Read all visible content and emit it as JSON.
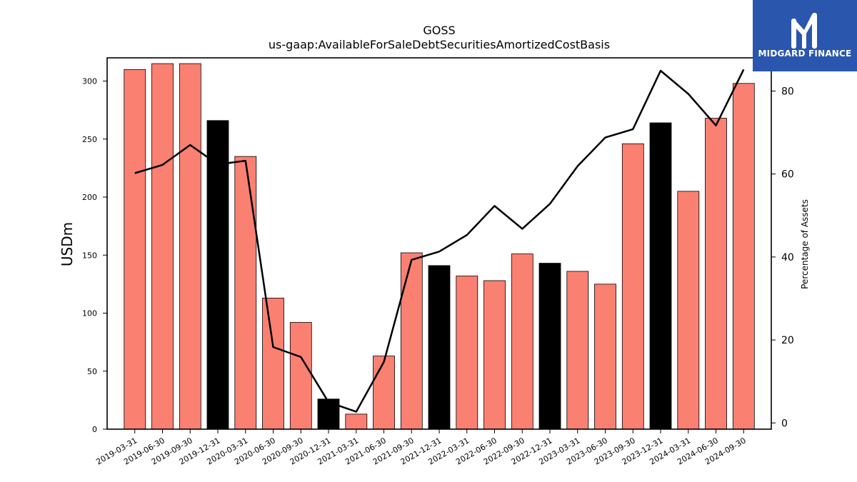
{
  "logo": {
    "text": "MIDGARD FINANCE",
    "background": "#2a56ad"
  },
  "chart_data": {
    "type": "bar",
    "title": "GOSS",
    "subtitle": "us-gaap:AvailableForSaleDebtSecuritiesAmortizedCostBasis",
    "ylabel": "USDm",
    "y2label": "Percentage of Assets",
    "ylim": [
      0,
      320
    ],
    "y2lim": [
      -1.5,
      88
    ],
    "yticks": [
      0,
      50,
      100,
      150,
      200,
      250,
      300
    ],
    "y2ticks": [
      0,
      20,
      40,
      60,
      80
    ],
    "categories": [
      "2019-03-31",
      "2019-06-30",
      "2019-09-30",
      "2019-12-31",
      "2020-03-31",
      "2020-06-30",
      "2020-09-30",
      "2020-12-31",
      "2021-03-31",
      "2021-06-30",
      "2021-09-30",
      "2021-12-31",
      "2022-03-31",
      "2022-06-30",
      "2022-09-30",
      "2022-12-31",
      "2023-03-31",
      "2023-06-30",
      "2023-09-30",
      "2023-12-31",
      "2024-03-31",
      "2024-06-30",
      "2024-09-30"
    ],
    "series": [
      {
        "kind": "bar",
        "axis": "left",
        "values": [
          310,
          315,
          315,
          266,
          235,
          113,
          92,
          26,
          13,
          63,
          152,
          141,
          132,
          128,
          151,
          143,
          136,
          125,
          246,
          264,
          205,
          268,
          298
        ],
        "colors": [
          "#fa8072",
          "#fa8072",
          "#fa8072",
          "#000000",
          "#fa8072",
          "#fa8072",
          "#fa8072",
          "#000000",
          "#fa8072",
          "#fa8072",
          "#fa8072",
          "#000000",
          "#fa8072",
          "#fa8072",
          "#fa8072",
          "#000000",
          "#fa8072",
          "#fa8072",
          "#fa8072",
          "#000000",
          "#fa8072",
          "#fa8072",
          "#fa8072"
        ]
      },
      {
        "kind": "line",
        "axis": "right",
        "color": "#000000",
        "values": [
          60.2,
          62.2,
          67.0,
          62.3,
          63.2,
          18.3,
          15.9,
          5.0,
          2.7,
          14.7,
          39.3,
          41.3,
          45.3,
          52.3,
          46.8,
          52.8,
          61.9,
          68.8,
          70.8,
          84.9,
          79.3,
          71.7,
          85.2
        ]
      }
    ],
    "grid": false,
    "legend": "none"
  }
}
